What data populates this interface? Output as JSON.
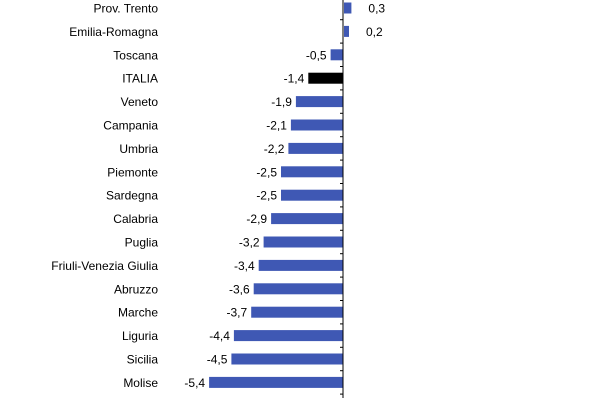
{
  "chart_data": {
    "type": "bar",
    "orientation": "horizontal",
    "categories": [
      "Prov. Trento",
      "Emilia-Romagna",
      "Toscana",
      "ITALIA",
      "Veneto",
      "Campania",
      "Umbria",
      "Piemonte",
      "Sardegna",
      "Calabria",
      "Puglia",
      "Friuli-Venezia Giulia",
      "Abruzzo",
      "Marche",
      "Liguria",
      "Sicilia",
      "Molise"
    ],
    "values": [
      0.3,
      0.2,
      -0.5,
      -1.4,
      -1.9,
      -2.1,
      -2.2,
      -2.5,
      -2.5,
      -2.9,
      -3.2,
      -3.4,
      -3.6,
      -3.7,
      -4.4,
      -4.5,
      -5.4
    ],
    "value_labels": [
      "0,3",
      "0,2",
      "-0,5",
      "-1,4",
      "-1,9",
      "-2,1",
      "-2,2",
      "-2,5",
      "-2,5",
      "-2,9",
      "-3,2",
      "-3,4",
      "-3,6",
      "-3,7",
      "-4,4",
      "-4,5",
      "-5,4"
    ],
    "highlight_category": "ITALIA",
    "colors": {
      "bar": "#3f58b4",
      "highlight": "#000000",
      "axis": "#000000"
    },
    "title": "",
    "xlabel": "",
    "ylabel": "",
    "xlim": [
      -5.4,
      0.3
    ],
    "grid": false,
    "legend": "none"
  }
}
